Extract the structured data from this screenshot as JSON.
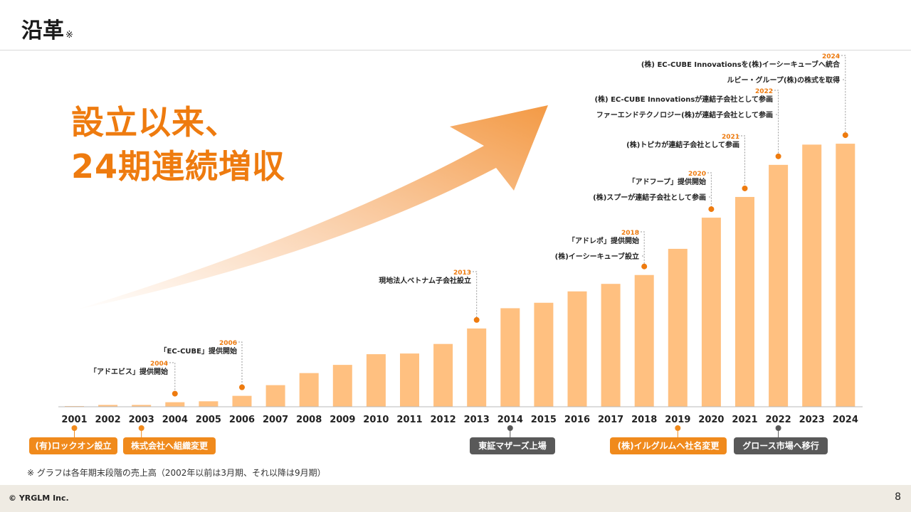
{
  "header": {
    "title": "沿革",
    "title_note": "※"
  },
  "headline": {
    "line1": "設立以来、",
    "line2": "24期連続増収"
  },
  "colors": {
    "bar": "#ffc080",
    "accent": "#ee7b0f",
    "badge_orange": "#f08a1c",
    "badge_gray": "#595959"
  },
  "chart_data": {
    "type": "bar",
    "categories": [
      "2001",
      "2002",
      "2003",
      "2004",
      "2005",
      "2006",
      "2007",
      "2008",
      "2009",
      "2010",
      "2011",
      "2012",
      "2013",
      "2014",
      "2015",
      "2016",
      "2017",
      "2018",
      "2019",
      "2020",
      "2021",
      "2022",
      "2023",
      "2024"
    ],
    "values": [
      0.3,
      0.8,
      0.8,
      2.0,
      2.4,
      4.8,
      9.5,
      14.8,
      18.4,
      23.1,
      23.4,
      27.6,
      34.4,
      43.3,
      45.7,
      50.7,
      54.0,
      57.9,
      69.4,
      83.1,
      92.2,
      106.3,
      115.2,
      115.6
    ],
    "ylim": [
      0,
      120
    ],
    "grid": false,
    "annotations": [
      {
        "year": "2004",
        "year_label": "2004",
        "lines": [
          "「アドエビス」提供開始"
        ]
      },
      {
        "year": "2006",
        "year_label": "2006",
        "lines": [
          "「EC-CUBE」提供開始"
        ]
      },
      {
        "year": "2013",
        "year_label": "2013",
        "lines": [
          "現地法人ベトナム子会社設立"
        ]
      },
      {
        "year": "2018",
        "year_label": "2018",
        "lines": [
          "「アドレポ」提供開始",
          "(株)イーシーキューブ設立"
        ]
      },
      {
        "year": "2020",
        "year_label": "2020",
        "lines": [
          "「アドフープ」提供開始",
          "(株)スプーが連結子会社として参画"
        ]
      },
      {
        "year": "2021",
        "year_label": "2021",
        "lines": [
          "(株)トピカが連結子会社として参画"
        ]
      },
      {
        "year": "2022",
        "year_label": "2022",
        "lines": [
          "(株) EC-CUBE Innovationsが連結子会社として参画",
          "ファーエンドテクノロジー(株)が連結子会社として参画"
        ]
      },
      {
        "year": "2024",
        "year_label": "2024",
        "lines": [
          "(株) EC-CUBE Innovationsを(株)イーシーキューブへ統合",
          "ルビー・グループ(株)の株式を取得"
        ]
      }
    ]
  },
  "badges": [
    {
      "text": "(有)ロックオン設立",
      "year": "2001",
      "color": "orange"
    },
    {
      "text": "株式会社へ組織変更",
      "year": "2003",
      "color": "orange"
    },
    {
      "text": "東証マザーズ上場",
      "year": "2014",
      "color": "gray"
    },
    {
      "text": "(株)イルグルムへ社名変更",
      "year": "2019",
      "color": "orange"
    },
    {
      "text": "グロース市場へ移行",
      "year": "2022",
      "color": "gray"
    }
  ],
  "footnote": "※ グラフは各年期末段階の売上高（2002年以前は3月期、それ以降は9月期）",
  "footer": {
    "copyright": "© YRGLM Inc.",
    "page_number": "8"
  }
}
